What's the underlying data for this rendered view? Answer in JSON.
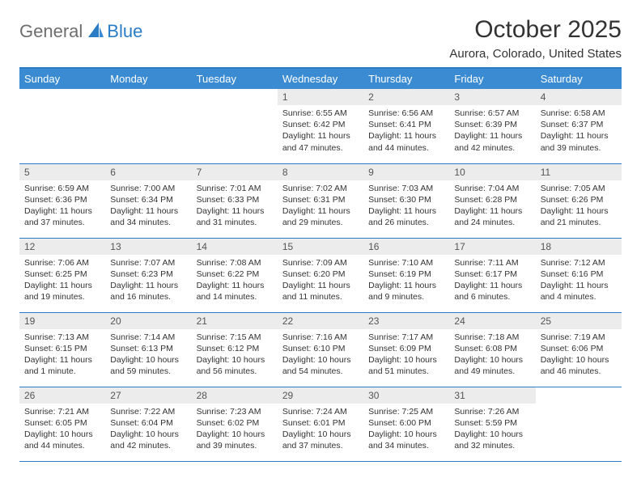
{
  "logo": {
    "general": "General",
    "blue": "Blue"
  },
  "title": "October 2025",
  "location": "Aurora, Colorado, United States",
  "colors": {
    "header_bg": "#3a8bd2",
    "header_border": "#2a7cc4",
    "daynum_bg": "#ececec",
    "text": "#333333",
    "logo_gray": "#6e6e6e",
    "logo_blue": "#2a7cc4"
  },
  "weekdays": [
    "Sunday",
    "Monday",
    "Tuesday",
    "Wednesday",
    "Thursday",
    "Friday",
    "Saturday"
  ],
  "weeks": [
    [
      {
        "n": "",
        "sr": "",
        "ss": "",
        "dl": ""
      },
      {
        "n": "",
        "sr": "",
        "ss": "",
        "dl": ""
      },
      {
        "n": "",
        "sr": "",
        "ss": "",
        "dl": ""
      },
      {
        "n": "1",
        "sr": "Sunrise: 6:55 AM",
        "ss": "Sunset: 6:42 PM",
        "dl": "Daylight: 11 hours and 47 minutes."
      },
      {
        "n": "2",
        "sr": "Sunrise: 6:56 AM",
        "ss": "Sunset: 6:41 PM",
        "dl": "Daylight: 11 hours and 44 minutes."
      },
      {
        "n": "3",
        "sr": "Sunrise: 6:57 AM",
        "ss": "Sunset: 6:39 PM",
        "dl": "Daylight: 11 hours and 42 minutes."
      },
      {
        "n": "4",
        "sr": "Sunrise: 6:58 AM",
        "ss": "Sunset: 6:37 PM",
        "dl": "Daylight: 11 hours and 39 minutes."
      }
    ],
    [
      {
        "n": "5",
        "sr": "Sunrise: 6:59 AM",
        "ss": "Sunset: 6:36 PM",
        "dl": "Daylight: 11 hours and 37 minutes."
      },
      {
        "n": "6",
        "sr": "Sunrise: 7:00 AM",
        "ss": "Sunset: 6:34 PM",
        "dl": "Daylight: 11 hours and 34 minutes."
      },
      {
        "n": "7",
        "sr": "Sunrise: 7:01 AM",
        "ss": "Sunset: 6:33 PM",
        "dl": "Daylight: 11 hours and 31 minutes."
      },
      {
        "n": "8",
        "sr": "Sunrise: 7:02 AM",
        "ss": "Sunset: 6:31 PM",
        "dl": "Daylight: 11 hours and 29 minutes."
      },
      {
        "n": "9",
        "sr": "Sunrise: 7:03 AM",
        "ss": "Sunset: 6:30 PM",
        "dl": "Daylight: 11 hours and 26 minutes."
      },
      {
        "n": "10",
        "sr": "Sunrise: 7:04 AM",
        "ss": "Sunset: 6:28 PM",
        "dl": "Daylight: 11 hours and 24 minutes."
      },
      {
        "n": "11",
        "sr": "Sunrise: 7:05 AM",
        "ss": "Sunset: 6:26 PM",
        "dl": "Daylight: 11 hours and 21 minutes."
      }
    ],
    [
      {
        "n": "12",
        "sr": "Sunrise: 7:06 AM",
        "ss": "Sunset: 6:25 PM",
        "dl": "Daylight: 11 hours and 19 minutes."
      },
      {
        "n": "13",
        "sr": "Sunrise: 7:07 AM",
        "ss": "Sunset: 6:23 PM",
        "dl": "Daylight: 11 hours and 16 minutes."
      },
      {
        "n": "14",
        "sr": "Sunrise: 7:08 AM",
        "ss": "Sunset: 6:22 PM",
        "dl": "Daylight: 11 hours and 14 minutes."
      },
      {
        "n": "15",
        "sr": "Sunrise: 7:09 AM",
        "ss": "Sunset: 6:20 PM",
        "dl": "Daylight: 11 hours and 11 minutes."
      },
      {
        "n": "16",
        "sr": "Sunrise: 7:10 AM",
        "ss": "Sunset: 6:19 PM",
        "dl": "Daylight: 11 hours and 9 minutes."
      },
      {
        "n": "17",
        "sr": "Sunrise: 7:11 AM",
        "ss": "Sunset: 6:17 PM",
        "dl": "Daylight: 11 hours and 6 minutes."
      },
      {
        "n": "18",
        "sr": "Sunrise: 7:12 AM",
        "ss": "Sunset: 6:16 PM",
        "dl": "Daylight: 11 hours and 4 minutes."
      }
    ],
    [
      {
        "n": "19",
        "sr": "Sunrise: 7:13 AM",
        "ss": "Sunset: 6:15 PM",
        "dl": "Daylight: 11 hours and 1 minute."
      },
      {
        "n": "20",
        "sr": "Sunrise: 7:14 AM",
        "ss": "Sunset: 6:13 PM",
        "dl": "Daylight: 10 hours and 59 minutes."
      },
      {
        "n": "21",
        "sr": "Sunrise: 7:15 AM",
        "ss": "Sunset: 6:12 PM",
        "dl": "Daylight: 10 hours and 56 minutes."
      },
      {
        "n": "22",
        "sr": "Sunrise: 7:16 AM",
        "ss": "Sunset: 6:10 PM",
        "dl": "Daylight: 10 hours and 54 minutes."
      },
      {
        "n": "23",
        "sr": "Sunrise: 7:17 AM",
        "ss": "Sunset: 6:09 PM",
        "dl": "Daylight: 10 hours and 51 minutes."
      },
      {
        "n": "24",
        "sr": "Sunrise: 7:18 AM",
        "ss": "Sunset: 6:08 PM",
        "dl": "Daylight: 10 hours and 49 minutes."
      },
      {
        "n": "25",
        "sr": "Sunrise: 7:19 AM",
        "ss": "Sunset: 6:06 PM",
        "dl": "Daylight: 10 hours and 46 minutes."
      }
    ],
    [
      {
        "n": "26",
        "sr": "Sunrise: 7:21 AM",
        "ss": "Sunset: 6:05 PM",
        "dl": "Daylight: 10 hours and 44 minutes."
      },
      {
        "n": "27",
        "sr": "Sunrise: 7:22 AM",
        "ss": "Sunset: 6:04 PM",
        "dl": "Daylight: 10 hours and 42 minutes."
      },
      {
        "n": "28",
        "sr": "Sunrise: 7:23 AM",
        "ss": "Sunset: 6:02 PM",
        "dl": "Daylight: 10 hours and 39 minutes."
      },
      {
        "n": "29",
        "sr": "Sunrise: 7:24 AM",
        "ss": "Sunset: 6:01 PM",
        "dl": "Daylight: 10 hours and 37 minutes."
      },
      {
        "n": "30",
        "sr": "Sunrise: 7:25 AM",
        "ss": "Sunset: 6:00 PM",
        "dl": "Daylight: 10 hours and 34 minutes."
      },
      {
        "n": "31",
        "sr": "Sunrise: 7:26 AM",
        "ss": "Sunset: 5:59 PM",
        "dl": "Daylight: 10 hours and 32 minutes."
      },
      {
        "n": "",
        "sr": "",
        "ss": "",
        "dl": ""
      }
    ]
  ]
}
